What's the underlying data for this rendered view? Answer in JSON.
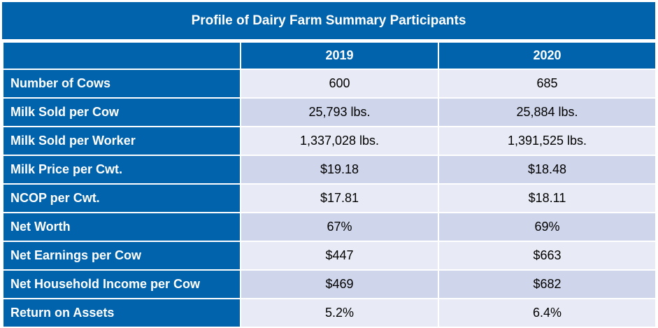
{
  "title": "Profile of Dairy Farm Summary Participants",
  "columns": [
    "",
    "2019",
    "2020"
  ],
  "rows": [
    {
      "label": "Number of Cows",
      "v2019": "600",
      "v2020": "685"
    },
    {
      "label": "Milk Sold per Cow",
      "v2019": "25,793 lbs.",
      "v2020": "25,884 lbs."
    },
    {
      "label": "Milk Sold per Worker",
      "v2019": "1,337,028 lbs.",
      "v2020": "1,391,525 lbs."
    },
    {
      "label": "Milk Price per Cwt.",
      "v2019": "$19.18",
      "v2020": "$18.48"
    },
    {
      "label": "NCOP per Cwt.",
      "v2019": "$17.81",
      "v2020": "$18.11"
    },
    {
      "label": "Net Worth",
      "v2019": "67%",
      "v2020": "69%"
    },
    {
      "label": "Net Earnings per Cow",
      "v2019": "$447",
      "v2020": "$663"
    },
    {
      "label": "Net Household Income per Cow",
      "v2019": "$469",
      "v2020": "$682"
    },
    {
      "label": "Return on Assets",
      "v2019": "5.2%",
      "v2020": "6.4%"
    }
  ],
  "colors": {
    "header_blue": "#0063AC",
    "row_light": "#E8EBF5",
    "row_dark": "#CFD5EA",
    "header_text": "#FFFFFF"
  }
}
